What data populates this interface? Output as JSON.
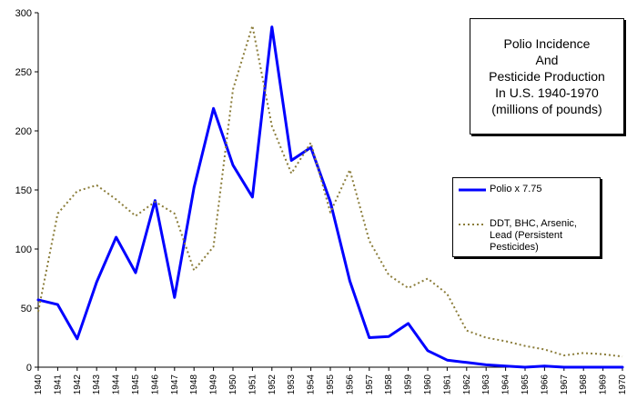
{
  "chart_data": {
    "type": "line",
    "title_lines": [
      "Polio Incidence",
      "And",
      "Pesticide Production",
      "In U.S. 1940-1970",
      "(millions of pounds)"
    ],
    "x": [
      "1940",
      "1941",
      "1942",
      "1943",
      "1944",
      "1945",
      "1946",
      "1947",
      "1948",
      "1949",
      "1950",
      "1951",
      "1952",
      "1953",
      "1954",
      "1955",
      "1956",
      "1957",
      "1958",
      "1959",
      "1960",
      "1961",
      "1962",
      "1963",
      "1964",
      "1965",
      "1966",
      "1967",
      "1968",
      "1969",
      "1970"
    ],
    "ylim": [
      0,
      300
    ],
    "yticks": [
      0,
      50,
      100,
      150,
      200,
      250,
      300
    ],
    "grid": false,
    "legend_position": "right",
    "series": [
      {
        "name": "Polio x 7.75",
        "color": "#0000ff",
        "style": "solid",
        "values": [
          57,
          53,
          24,
          72,
          110,
          80,
          141,
          59,
          152,
          219,
          171,
          144,
          288,
          175,
          186,
          140,
          73,
          25,
          26,
          37,
          14,
          6,
          4,
          2,
          1,
          0,
          1,
          0,
          0,
          0,
          0
        ]
      },
      {
        "name": "DDT, BHC, Arsenic, Lead (Persistent Pesticides)",
        "color": "#8b7d3a",
        "style": "dotted",
        "values": [
          47,
          130,
          149,
          154,
          142,
          128,
          140,
          130,
          82,
          102,
          235,
          289,
          204,
          164,
          190,
          131,
          167,
          107,
          78,
          67,
          75,
          62,
          31,
          25,
          22,
          18,
          15,
          10,
          12,
          11,
          9
        ]
      }
    ]
  },
  "legend": {
    "polio_lines": [
      "Polio x 7.75"
    ],
    "pesticide_lines": [
      "DDT, BHC, Arsenic,",
      "Lead (Persistent",
      "Pesticides)"
    ]
  }
}
